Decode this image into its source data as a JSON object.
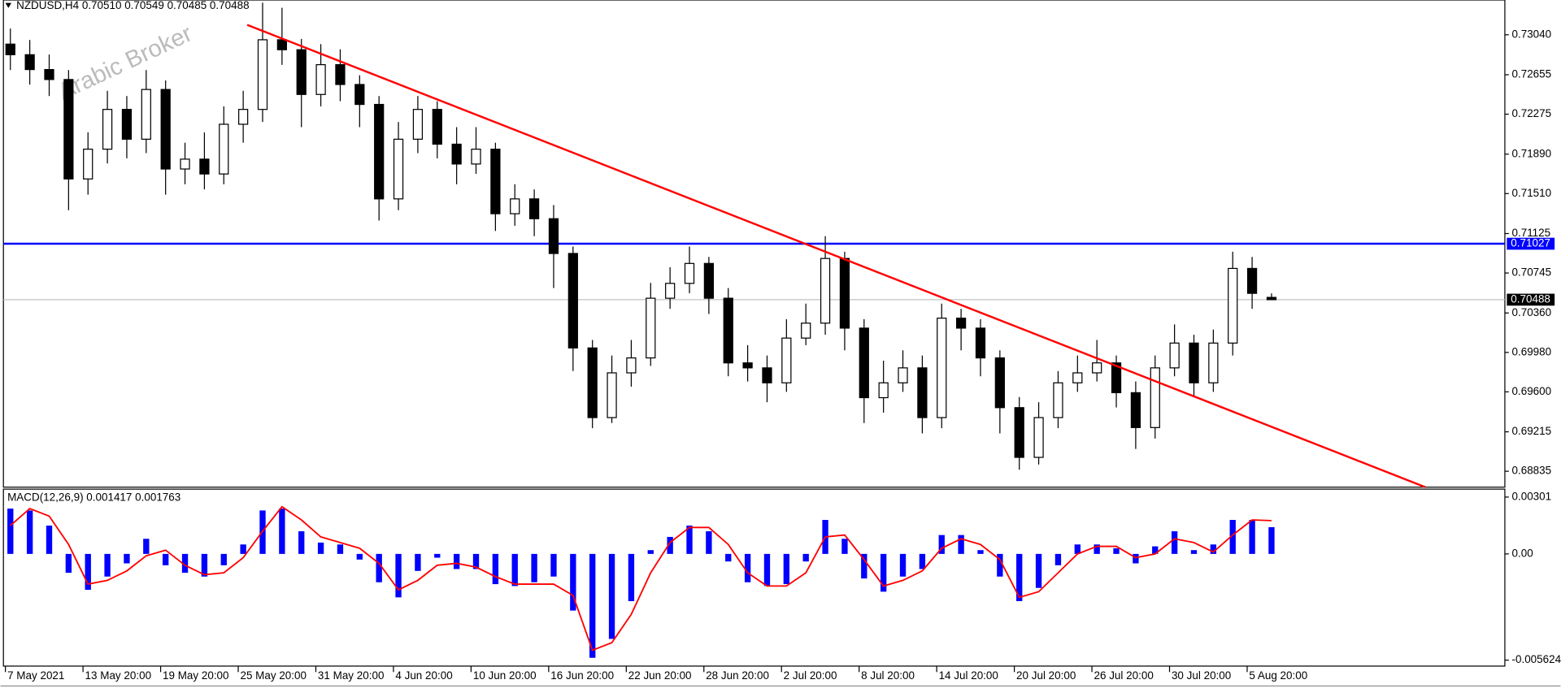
{
  "header": "NZDUSD,H4  0.70510 0.70549 0.70485 0.70488",
  "watermark": "Arabic Broker",
  "chart_data": [
    {
      "type": "candlestick",
      "categories": [
        "7 May 2021",
        null,
        null,
        null,
        "13 May 20:00",
        null,
        null,
        null,
        "19 May 20:00",
        null,
        null,
        null,
        "25 May 20:00",
        null,
        null,
        null,
        "31 May 20:00",
        null,
        null,
        null,
        "4 Jun 20:00",
        null,
        null,
        null,
        "10 Jun 20:00",
        null,
        null,
        null,
        "16 Jun 20:00",
        null,
        null,
        null,
        "22 Jun 20:00",
        null,
        null,
        null,
        "28 Jun 20:00",
        null,
        null,
        null,
        "2 Jul 20:00",
        null,
        null,
        null,
        "8 Jul 20:00",
        null,
        null,
        null,
        "14 Jul 20:00",
        null,
        null,
        null,
        "20 Jul 20:00",
        null,
        null,
        null,
        "26 Jul 20:00",
        null,
        null,
        null,
        "30 Jul 20:00",
        null,
        null,
        null,
        "5 Aug 20:00",
        null
      ],
      "open": [
        0.7295,
        0.72848,
        0.72705,
        0.72609,
        0.71651,
        0.71938,
        0.72321,
        0.72034,
        0.72513,
        0.71747,
        0.71842,
        0.71699,
        0.72178,
        0.72321,
        0.72992,
        0.72896,
        0.72465,
        0.72752,
        0.72561,
        0.72369,
        0.71459,
        0.72034,
        0.72321,
        0.71986,
        0.71795,
        0.71938,
        0.71316,
        0.71459,
        0.71268,
        0.70933,
        0.70023,
        0.69352,
        0.69783,
        0.69927,
        0.70502,
        0.70645,
        0.70837,
        0.70502,
        0.69879,
        0.69831,
        0.69687,
        0.70118,
        0.70262,
        0.70885,
        0.70214,
        0.69544,
        0.69687,
        0.69831,
        0.69352,
        0.7031,
        0.70214,
        0.69927,
        0.69448,
        0.68969,
        0.69352,
        0.69687,
        0.69783,
        0.69879,
        0.69592,
        0.69256,
        0.69831,
        0.7007,
        0.69687,
        0.7007,
        0.70789,
        0.7051
      ],
      "high": [
        0.731,
        0.7299,
        0.7285,
        0.727,
        0.721,
        0.725,
        0.7245,
        0.727,
        0.726,
        0.72,
        0.721,
        0.7235,
        0.725,
        0.7335,
        0.733,
        0.73,
        0.7295,
        0.729,
        0.7265,
        0.7245,
        0.722,
        0.7245,
        0.724,
        0.7215,
        0.7215,
        0.72,
        0.716,
        0.7155,
        0.714,
        0.71,
        0.701,
        0.6995,
        0.701,
        0.7065,
        0.708,
        0.71,
        0.709,
        0.706,
        0.7005,
        0.6995,
        0.703,
        0.7045,
        0.711,
        0.7095,
        0.703,
        0.699,
        0.7,
        0.6995,
        0.7045,
        0.704,
        0.703,
        0.7,
        0.6955,
        0.695,
        0.698,
        0.6995,
        0.701,
        0.6995,
        0.697,
        0.6995,
        0.7025,
        0.7015,
        0.702,
        0.7095,
        0.709,
        0.70549
      ],
      "low": [
        0.727,
        0.7256,
        0.7245,
        0.7135,
        0.715,
        0.718,
        0.7185,
        0.719,
        0.715,
        0.716,
        0.7155,
        0.716,
        0.72,
        0.722,
        0.7275,
        0.7215,
        0.7235,
        0.724,
        0.7215,
        0.7125,
        0.7135,
        0.719,
        0.7185,
        0.716,
        0.717,
        0.7115,
        0.712,
        0.711,
        0.706,
        0.698,
        0.6925,
        0.693,
        0.6965,
        0.6985,
        0.704,
        0.7055,
        0.7035,
        0.6975,
        0.697,
        0.695,
        0.696,
        0.7005,
        0.7015,
        0.7,
        0.693,
        0.694,
        0.696,
        0.692,
        0.6925,
        0.7,
        0.6975,
        0.692,
        0.6885,
        0.689,
        0.6925,
        0.696,
        0.697,
        0.6945,
        0.6905,
        0.6915,
        0.6975,
        0.6955,
        0.696,
        0.6995,
        0.704,
        0.70485
      ],
      "close": [
        0.72848,
        0.72705,
        0.72609,
        0.71651,
        0.71938,
        0.72321,
        0.72034,
        0.72513,
        0.71747,
        0.71842,
        0.71699,
        0.72178,
        0.72321,
        0.72992,
        0.72896,
        0.72465,
        0.72752,
        0.72561,
        0.72369,
        0.71459,
        0.72034,
        0.72321,
        0.71986,
        0.71795,
        0.71938,
        0.71316,
        0.71459,
        0.71268,
        0.70933,
        0.70023,
        0.69352,
        0.69783,
        0.69927,
        0.70502,
        0.70645,
        0.70837,
        0.70502,
        0.69879,
        0.69831,
        0.69687,
        0.70118,
        0.70262,
        0.70885,
        0.70214,
        0.69544,
        0.69687,
        0.69831,
        0.69352,
        0.7031,
        0.70214,
        0.69927,
        0.69448,
        0.68969,
        0.69352,
        0.69687,
        0.69783,
        0.69879,
        0.69592,
        0.69256,
        0.69831,
        0.7007,
        0.69687,
        0.7007,
        0.70789,
        0.70549,
        0.70488
      ],
      "up_color": "#ffffff",
      "down_color": "#000000",
      "ylim": [
        0.68682,
        0.73375
      ],
      "yticks": [
        {
          "value": 0.7304,
          "label": "0.73040"
        },
        {
          "value": 0.72655,
          "label": "0.72655"
        },
        {
          "value": 0.72275,
          "label": "0.72275"
        },
        {
          "value": 0.7189,
          "label": "0.71890"
        },
        {
          "value": 0.7151,
          "label": "0.71510"
        },
        {
          "value": 0.71125,
          "label": "0.71125"
        },
        {
          "value": 0.70745,
          "label": "0.70745"
        },
        {
          "value": 0.7036,
          "label": "0.70360"
        },
        {
          "value": 0.6998,
          "label": "0.69980"
        },
        {
          "value": 0.696,
          "label": "0.69600"
        },
        {
          "value": 0.69215,
          "label": "0.69215"
        },
        {
          "value": 0.68835,
          "label": "0.68835"
        }
      ],
      "levels": [
        {
          "value": 0.71027,
          "label": "0.71027",
          "color": "#0000ff"
        },
        {
          "value": 0.70488,
          "label": "0.70488",
          "color": "#c0c0c0"
        }
      ]
    },
    {
      "type": "macd",
      "title": "MACD(12,26,9) 0.001417 0.001763",
      "series": [
        {
          "name": "MACD",
          "color": "#0000ff",
          "values": [
            0.0024,
            0.0023,
            0.0015,
            -0.001,
            -0.0019,
            -0.0012,
            -0.0005,
            0.0008,
            -0.0006,
            -0.001,
            -0.0012,
            -0.0006,
            0.0005,
            0.0023,
            0.0024,
            0.0012,
            0.0006,
            0.0005,
            -0.0003,
            -0.0015,
            -0.0023,
            -0.0009,
            -0.0002,
            -0.0008,
            -0.0008,
            -0.0016,
            -0.0017,
            -0.0015,
            -0.0012,
            -0.003,
            -0.0055,
            -0.0045,
            -0.0025,
            0.0002,
            0.0009,
            0.0015,
            0.0012,
            -0.0004,
            -0.0015,
            -0.0017,
            -0.0016,
            -0.0004,
            0.0018,
            0.0008,
            -0.0013,
            -0.002,
            -0.0012,
            -0.0008,
            0.001,
            0.001,
            0.0002,
            -0.0012,
            -0.0025,
            -0.0018,
            -0.0006,
            0.0005,
            0.0005,
            0.0003,
            -0.0005,
            0.0004,
            0.0012,
            0.0002,
            0.0005,
            0.0018,
            0.0018,
            0.001417
          ]
        },
        {
          "name": "Signal",
          "color": "#ff0000",
          "values": [
            0.0015,
            0.0024,
            0.002,
            0.0005,
            -0.0016,
            -0.0014,
            -0.0009,
            -0.0001,
            0.0002,
            -0.0006,
            -0.0011,
            -0.001,
            -0.0002,
            0.0012,
            0.0025,
            0.0018,
            0.0009,
            0.0006,
            0.0003,
            -0.0005,
            -0.0019,
            -0.0014,
            -0.0006,
            -0.0005,
            -0.0007,
            -0.0012,
            -0.0016,
            -0.0016,
            -0.0016,
            -0.0022,
            -0.0051,
            -0.0047,
            -0.0032,
            -0.001,
            0.0006,
            0.0014,
            0.0014,
            0.0005,
            -0.001,
            -0.0017,
            -0.0017,
            -0.001,
            0.0009,
            0.001,
            -0.0003,
            -0.0017,
            -0.0014,
            -0.0009,
            0.0003,
            0.0008,
            0.0005,
            -0.0003,
            -0.0023,
            -0.002,
            -0.001,
            0.0,
            0.0004,
            0.0004,
            -0.0002,
            0.0,
            0.0008,
            0.0006,
            0.0001,
            0.001,
            0.0018,
            0.001763
          ]
        }
      ],
      "ylim": [
        -0.00594,
        0.00343
      ],
      "yticks": [
        0.00301,
        {
          "value": 0,
          "label": "0.00"
        },
        -0.005624
      ]
    }
  ]
}
